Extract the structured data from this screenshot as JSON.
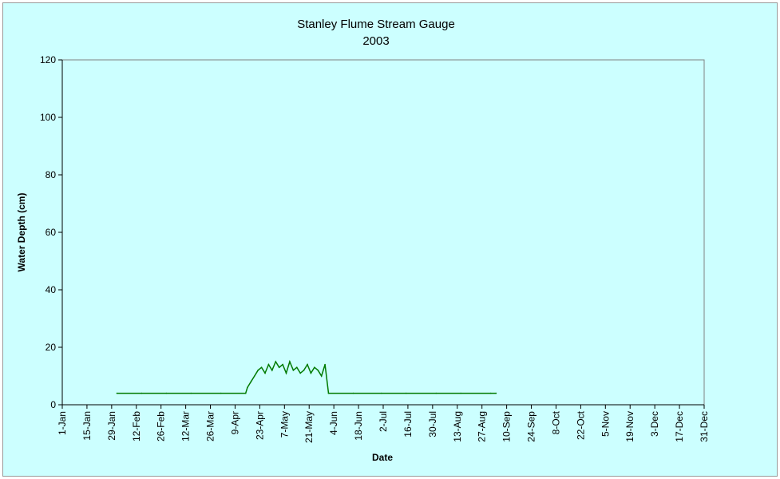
{
  "chart_data": {
    "type": "line",
    "title": "Stanley Flume Stream Gauge",
    "subtitle": "2003",
    "xlabel": "Date",
    "ylabel": "Water Depth (cm)",
    "ylim": [
      0,
      120
    ],
    "yticks": [
      0,
      20,
      40,
      60,
      80,
      100,
      120
    ],
    "xlim": [
      "2003-01-01",
      "2003-12-31"
    ],
    "xticks": [
      "1-Jan",
      "15-Jan",
      "29-Jan",
      "12-Feb",
      "26-Feb",
      "12-Mar",
      "26-Mar",
      "9-Apr",
      "23-Apr",
      "7-May",
      "21-May",
      "4-Jun",
      "18-Jun",
      "2-Jul",
      "16-Jul",
      "30-Jul",
      "13-Aug",
      "27-Aug",
      "10-Sep",
      "24-Sep",
      "8-Oct",
      "22-Oct",
      "5-Nov",
      "19-Nov",
      "3-Dec",
      "17-Dec",
      "31-Dec"
    ],
    "grid": false,
    "series_color": "#007a00",
    "plot_background": "#ccffff",
    "series": [
      {
        "x": [
          "2003-02-01",
          "2003-02-15",
          "2003-03-01",
          "2003-03-15",
          "2003-04-01",
          "2003-04-15",
          "2003-04-16",
          "2003-04-18",
          "2003-04-20",
          "2003-04-22",
          "2003-04-24",
          "2003-04-26",
          "2003-04-28",
          "2003-04-30",
          "2003-05-02",
          "2003-05-04",
          "2003-05-06",
          "2003-05-08",
          "2003-05-10",
          "2003-05-12",
          "2003-05-14",
          "2003-05-16",
          "2003-05-18",
          "2003-05-20",
          "2003-05-22",
          "2003-05-24",
          "2003-05-26",
          "2003-05-28",
          "2003-05-30",
          "2003-06-01",
          "2003-06-15",
          "2003-07-01",
          "2003-07-15",
          "2003-08-01",
          "2003-08-15",
          "2003-09-01",
          "2003-09-04"
        ],
        "y": [
          4,
          4,
          4,
          4,
          4,
          4,
          6,
          8,
          10,
          12,
          13,
          11,
          14,
          12,
          15,
          13,
          14,
          11,
          15,
          12,
          13,
          11,
          12,
          14,
          11,
          13,
          12,
          10,
          14,
          4,
          4,
          4,
          4,
          4,
          4,
          4,
          4
        ]
      }
    ]
  }
}
